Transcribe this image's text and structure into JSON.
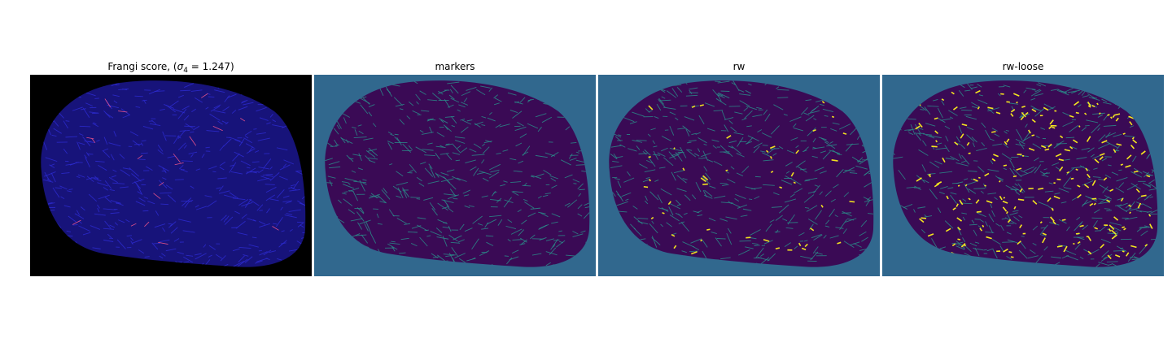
{
  "panels": [
    {
      "title_prefix": "Frangi score, (",
      "title_symbol": "σ",
      "title_subscript": "4",
      "title_suffix": " = 1.247)",
      "bg_color": "#000000",
      "blob_color": "#17137a",
      "line_color": "#2d2bd0",
      "highlight_color": "#e0508a",
      "colormap": "magma"
    },
    {
      "title": "markers",
      "bg_color": "#31688e",
      "blob_color": "#3a0a55",
      "line_color": "#2a8d8a",
      "highlight_color": "#2a8d8a",
      "colormap": "viridis"
    },
    {
      "title": "rw",
      "bg_color": "#31688e",
      "blob_color": "#3a0a55",
      "line_color": "#2a8d8a",
      "highlight_color": "#f0e020",
      "colormap": "viridis"
    },
    {
      "title": "rw-loose",
      "bg_color": "#31688e",
      "blob_color": "#3a0a55",
      "line_color": "#2a8d8a",
      "highlight_color": "#f5e61f",
      "colormap": "viridis"
    }
  ]
}
